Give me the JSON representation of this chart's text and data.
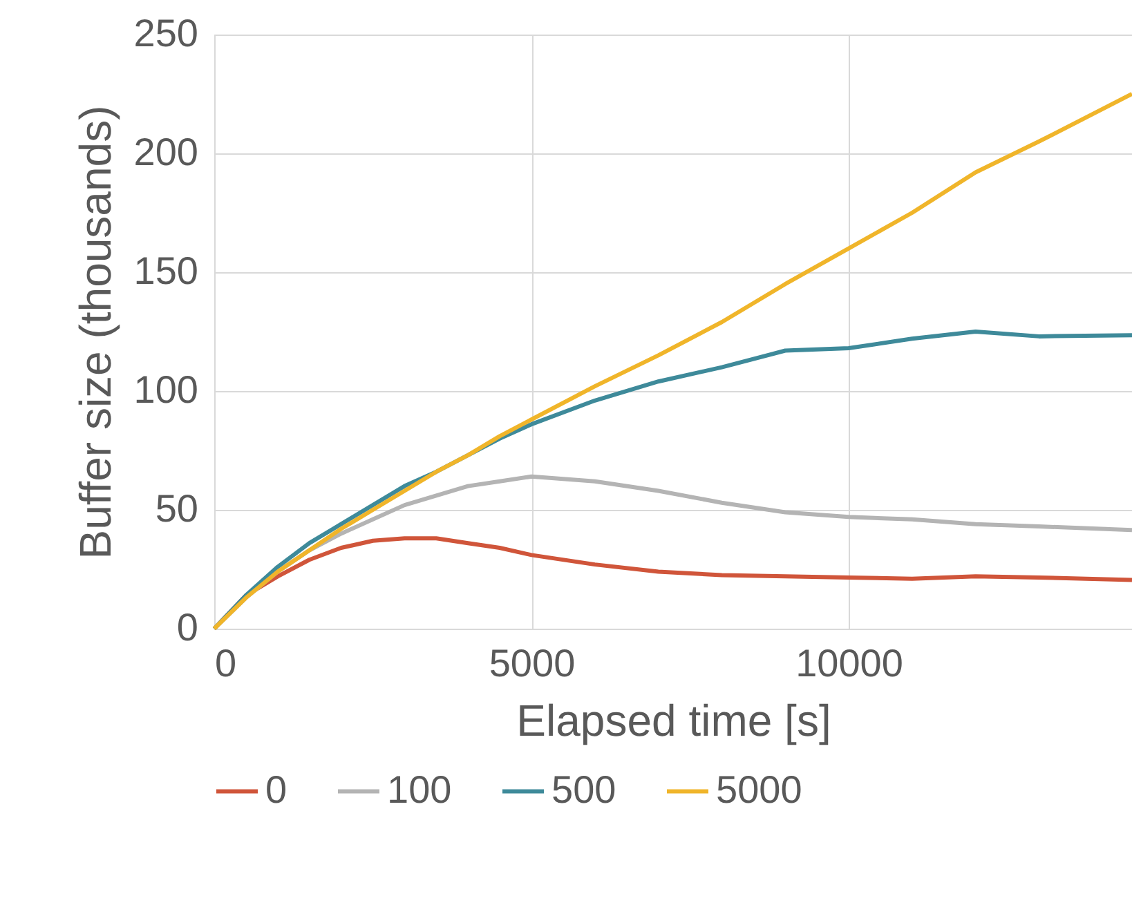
{
  "chart_data": {
    "type": "line",
    "xlabel": "Elapsed time [s]",
    "ylabel": "Buffer size (thousands)",
    "xlim": [
      0,
      14466
    ],
    "xticks": [
      0,
      5000,
      10000
    ],
    "ylim": [
      0,
      250
    ],
    "yticks": [
      0,
      50,
      100,
      150,
      200,
      250
    ],
    "grid": true,
    "legend": "bottom",
    "line_style": "solid",
    "marker": "none",
    "x": [
      0,
      500,
      1000,
      1500,
      2000,
      2500,
      3000,
      3500,
      4000,
      4500,
      5000,
      6000,
      7000,
      8000,
      9000,
      10000,
      11000,
      12000,
      13000,
      14466
    ],
    "series": [
      {
        "name": "0",
        "color": "#d0553a",
        "values": [
          0,
          14,
          22,
          29,
          34,
          37,
          38,
          38,
          36,
          34,
          31,
          27,
          24,
          22.5,
          22,
          21.5,
          21,
          22,
          21.5,
          20.5
        ]
      },
      {
        "name": "100",
        "color": "#b4b4b4",
        "values": [
          0,
          13,
          24,
          33,
          40,
          46,
          52,
          56,
          60,
          62,
          64,
          62,
          58,
          53,
          49,
          47,
          46,
          44,
          43,
          41.5
        ]
      },
      {
        "name": "500",
        "color": "#3e8a9a",
        "values": [
          0,
          14,
          26,
          36,
          44,
          52,
          60,
          66,
          73,
          80,
          86,
          96,
          104,
          110,
          117,
          118,
          122,
          125,
          123,
          123.5
        ]
      },
      {
        "name": "5000",
        "color": "#f0b52a",
        "values": [
          0,
          13,
          24,
          33,
          42,
          50,
          58,
          66,
          73,
          81,
          88,
          102,
          115,
          129,
          145,
          160,
          175,
          192,
          205,
          225
        ]
      }
    ]
  }
}
